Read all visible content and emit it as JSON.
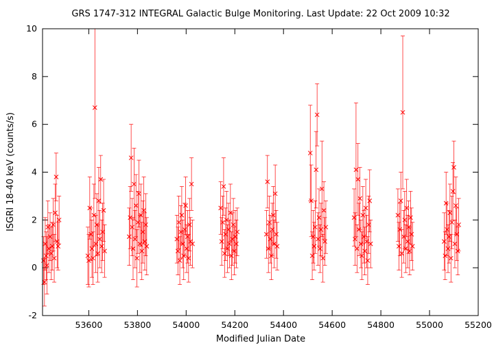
{
  "chart_data": {
    "type": "scatter",
    "title": "GRS 1747-312   INTEGRAL Galactic Bulge Monitoring.  Last Update: 22 Oct 2009 10:32",
    "xlabel": "Modified Julian Date",
    "ylabel": "ISGRI 18-40 keV (counts/s)",
    "xlim": [
      53410,
      55200
    ],
    "ylim": [
      -2,
      10
    ],
    "x_ticks": [
      "53600",
      "53800",
      "54000",
      "54200",
      "54400",
      "54600",
      "54800",
      "55000",
      "55200"
    ],
    "y_ticks": [
      "-2",
      "0",
      "2",
      "4",
      "6",
      "8",
      "10"
    ],
    "grid": false,
    "legend": "none",
    "marker": "x",
    "error_bars": true,
    "colors": {
      "series": "#ff0000",
      "axes": "#000000",
      "background": "#ffffff"
    },
    "series": [
      {
        "x": [
          53414,
          53418,
          53421,
          53425,
          53428,
          53432,
          53436,
          53441,
          53446,
          53450,
          53454,
          53458,
          53462,
          53466,
          53470,
          53474,
          53478,
          53596,
          53600,
          53604,
          53609,
          53613,
          53617,
          53621,
          53625,
          53629,
          53633,
          53637,
          53641,
          53645,
          53649,
          53653,
          53657,
          53661,
          53665,
          53766,
          53770,
          53774,
          53778,
          53782,
          53786,
          53790,
          53794,
          53798,
          53802,
          53806,
          53810,
          53814,
          53818,
          53822,
          53826,
          53830,
          53834,
          53838,
          53962,
          53966,
          53970,
          53974,
          53978,
          53982,
          53986,
          53990,
          53994,
          53998,
          54002,
          54006,
          54010,
          54014,
          54018,
          54022,
          54026,
          54142,
          54146,
          54150,
          54154,
          54158,
          54162,
          54166,
          54170,
          54174,
          54178,
          54182,
          54186,
          54190,
          54194,
          54198,
          54202,
          54206,
          54210,
          54330,
          54334,
          54338,
          54342,
          54346,
          54350,
          54354,
          54358,
          54362,
          54366,
          54370,
          54374,
          54510,
          54514,
          54518,
          54522,
          54526,
          54530,
          54534,
          54538,
          54542,
          54546,
          54550,
          54554,
          54558,
          54562,
          54566,
          54570,
          54574,
          54690,
          54694,
          54698,
          54702,
          54706,
          54710,
          54714,
          54718,
          54722,
          54726,
          54730,
          54734,
          54738,
          54742,
          54746,
          54750,
          54754,
          54758,
          54870,
          54874,
          54878,
          54882,
          54886,
          54890,
          54894,
          54898,
          54902,
          54906,
          54910,
          54914,
          54918,
          54922,
          54926,
          54930,
          55060,
          55064,
          55068,
          55072,
          55076,
          55080,
          55084,
          55088,
          55092,
          55096,
          55100,
          55104,
          55108,
          55112,
          55116,
          55120
        ],
        "y": [
          0.3,
          -0.6,
          1.0,
          0.5,
          0.1,
          1.7,
          0.8,
          1.3,
          0.6,
          0.9,
          1.8,
          0.4,
          2.3,
          3.8,
          1.1,
          0.9,
          2.0,
          0.5,
          0.3,
          2.5,
          1.4,
          0.8,
          0.4,
          2.2,
          6.7,
          1.0,
          1.8,
          0.6,
          2.8,
          1.2,
          3.7,
          0.9,
          1.5,
          2.4,
          0.7,
          1.3,
          2.1,
          4.6,
          1.7,
          0.8,
          3.5,
          1.2,
          2.6,
          0.4,
          1.9,
          3.1,
          1.0,
          2.2,
          0.7,
          1.5,
          2.4,
          1.1,
          1.8,
          0.9,
          1.2,
          0.7,
          1.9,
          0.3,
          1.5,
          2.2,
          1.0,
          0.5,
          1.6,
          2.6,
          0.8,
          1.3,
          0.4,
          1.8,
          1.1,
          3.5,
          1.0,
          2.5,
          1.1,
          1.9,
          3.4,
          0.6,
          1.4,
          2.0,
          0.8,
          1.6,
          1.0,
          2.3,
          0.5,
          1.2,
          1.8,
          0.7,
          1.3,
          1.0,
          1.5,
          1.4,
          3.6,
          0.8,
          1.9,
          1.2,
          0.5,
          1.6,
          2.2,
          1.0,
          3.1,
          1.4,
          0.9,
          4.8,
          2.8,
          0.5,
          1.3,
          0.9,
          1.7,
          4.1,
          6.4,
          1.2,
          2.1,
          0.8,
          1.6,
          3.3,
          0.4,
          2.4,
          1.1,
          1.7,
          2.1,
          1.2,
          4.1,
          0.8,
          3.7,
          1.6,
          2.9,
          1.0,
          0.5,
          2.2,
          1.3,
          0.7,
          2.5,
          1.1,
          0.3,
          1.8,
          2.8,
          1.0,
          2.2,
          0.9,
          1.6,
          2.8,
          0.6,
          6.5,
          1.3,
          2.0,
          0.8,
          2.5,
          1.1,
          1.7,
          0.7,
          2.1,
          1.4,
          0.9,
          1.1,
          0.5,
          2.7,
          1.6,
          0.8,
          1.3,
          2.3,
          0.4,
          1.9,
          3.2,
          4.2,
          1.0,
          2.6,
          1.4,
          0.7,
          1.8
        ],
        "err": [
          1.0,
          1.0,
          1.1,
          1.0,
          1.2,
          1.1,
          1.0,
          1.0,
          1.1,
          1.0,
          1.1,
          1.0,
          1.2,
          1.0,
          1.1,
          1.0,
          1.0,
          1.2,
          1.1,
          1.3,
          1.1,
          1.2,
          1.1,
          1.3,
          3.8,
          1.2,
          1.3,
          1.2,
          1.4,
          1.2,
          1.0,
          1.1,
          1.2,
          1.3,
          1.1,
          1.2,
          1.3,
          1.4,
          1.2,
          1.3,
          1.5,
          1.2,
          1.3,
          1.2,
          1.3,
          1.4,
          1.2,
          1.3,
          1.2,
          1.3,
          1.4,
          1.2,
          1.3,
          1.2,
          1.0,
          1.0,
          1.1,
          1.0,
          1.1,
          1.2,
          1.0,
          1.0,
          1.1,
          1.2,
          1.0,
          1.1,
          1.0,
          1.1,
          1.0,
          1.1,
          1.0,
          1.1,
          1.0,
          1.1,
          1.2,
          1.0,
          1.1,
          1.2,
          1.0,
          1.1,
          1.0,
          1.2,
          1.0,
          1.1,
          1.1,
          1.0,
          1.1,
          1.0,
          1.0,
          1.0,
          1.1,
          1.0,
          1.1,
          1.0,
          1.0,
          1.1,
          1.2,
          1.0,
          1.2,
          1.0,
          1.0,
          2.0,
          1.5,
          1.0,
          1.1,
          1.0,
          1.1,
          1.6,
          1.3,
          1.1,
          1.2,
          1.0,
          1.1,
          2.0,
          1.0,
          1.2,
          1.0,
          1.1,
          1.2,
          1.1,
          2.8,
          1.0,
          1.5,
          1.1,
          1.3,
          1.0,
          1.0,
          1.2,
          1.1,
          1.0,
          1.2,
          1.1,
          1.0,
          1.2,
          1.3,
          1.0,
          1.1,
          1.0,
          1.1,
          1.2,
          1.0,
          3.2,
          1.1,
          1.2,
          1.0,
          1.2,
          1.1,
          1.1,
          1.0,
          1.1,
          1.1,
          1.0,
          1.2,
          1.0,
          1.3,
          1.1,
          1.0,
          1.1,
          1.2,
          1.0,
          1.1,
          1.2,
          1.1,
          1.0,
          1.2,
          1.1,
          1.0,
          1.1
        ]
      }
    ]
  }
}
